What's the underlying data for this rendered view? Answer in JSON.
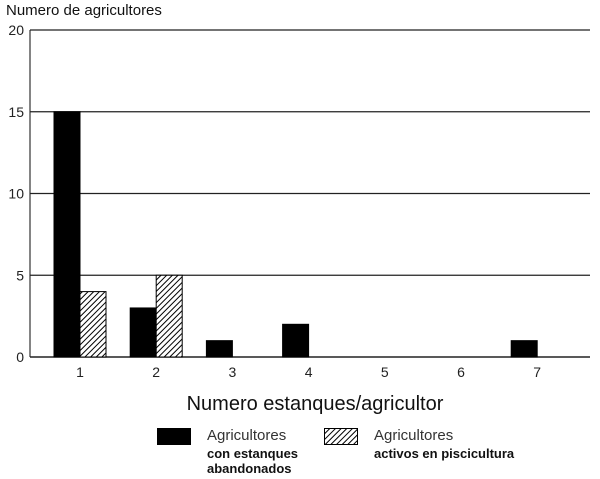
{
  "chart_data": {
    "type": "bar",
    "ylabel": "Numero de agricultores",
    "xlabel": "Numero estanques/agricultor",
    "categories": [
      "1",
      "2",
      "3",
      "4",
      "5",
      "6",
      "7"
    ],
    "ylim": [
      0,
      20
    ],
    "yticks": [
      "0",
      "5",
      "10",
      "15",
      "20"
    ],
    "grid": true,
    "legend_position": "bottom",
    "series": [
      {
        "name": "Agricultores con estanques abandonados",
        "name_line1": "Agricultores",
        "name_line2": "con estanques abandonados",
        "name_line2a": "con estanques",
        "name_line2b": "abandonados",
        "fill": "solid",
        "color": "#000000",
        "values": [
          15,
          3,
          1,
          2,
          0,
          0,
          1
        ]
      },
      {
        "name": "Agricultores activos en piscicultura",
        "name_line1": "Agricultores",
        "name_line2": "activos en piscicultura",
        "fill": "hatched",
        "color": "#000000",
        "values": [
          4,
          5,
          0,
          0,
          0,
          0,
          0
        ]
      }
    ]
  }
}
